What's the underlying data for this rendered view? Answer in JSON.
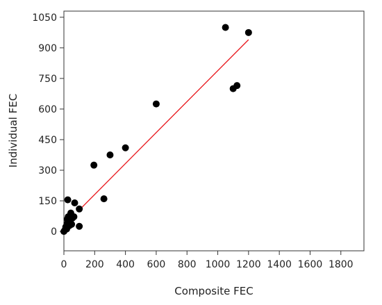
{
  "chart_data": {
    "type": "scatter",
    "xlabel": "Composite FEC",
    "ylabel": "Individual FEC",
    "xlim": [
      0,
      1950
    ],
    "ylim": [
      -95,
      1080
    ],
    "xticks": [
      0,
      200,
      400,
      600,
      800,
      1000,
      1200,
      1400,
      1600,
      1800
    ],
    "yticks": [
      0,
      150,
      300,
      450,
      600,
      750,
      900,
      1050
    ],
    "grid": false,
    "legend": "none",
    "marker_color": "#000000",
    "fit_line_color": "#e8161b",
    "points": [
      {
        "x": 0,
        "y": 0
      },
      {
        "x": 8,
        "y": 8
      },
      {
        "x": 12,
        "y": 22
      },
      {
        "x": 18,
        "y": 12
      },
      {
        "x": 20,
        "y": 38
      },
      {
        "x": 22,
        "y": 60
      },
      {
        "x": 25,
        "y": 155
      },
      {
        "x": 28,
        "y": 72
      },
      {
        "x": 35,
        "y": 28
      },
      {
        "x": 40,
        "y": 50
      },
      {
        "x": 45,
        "y": 90
      },
      {
        "x": 50,
        "y": 35
      },
      {
        "x": 55,
        "y": 65
      },
      {
        "x": 65,
        "y": 72
      },
      {
        "x": 70,
        "y": 140
      },
      {
        "x": 100,
        "y": 25
      },
      {
        "x": 100,
        "y": 110
      },
      {
        "x": 195,
        "y": 325
      },
      {
        "x": 260,
        "y": 160
      },
      {
        "x": 300,
        "y": 375
      },
      {
        "x": 400,
        "y": 410
      },
      {
        "x": 600,
        "y": 625
      },
      {
        "x": 1050,
        "y": 1000
      },
      {
        "x": 1100,
        "y": 700
      },
      {
        "x": 1125,
        "y": 715
      },
      {
        "x": 1200,
        "y": 975
      }
    ],
    "fit_line": {
      "x": [
        100,
        1200
      ],
      "y": [
        105,
        940
      ]
    }
  }
}
